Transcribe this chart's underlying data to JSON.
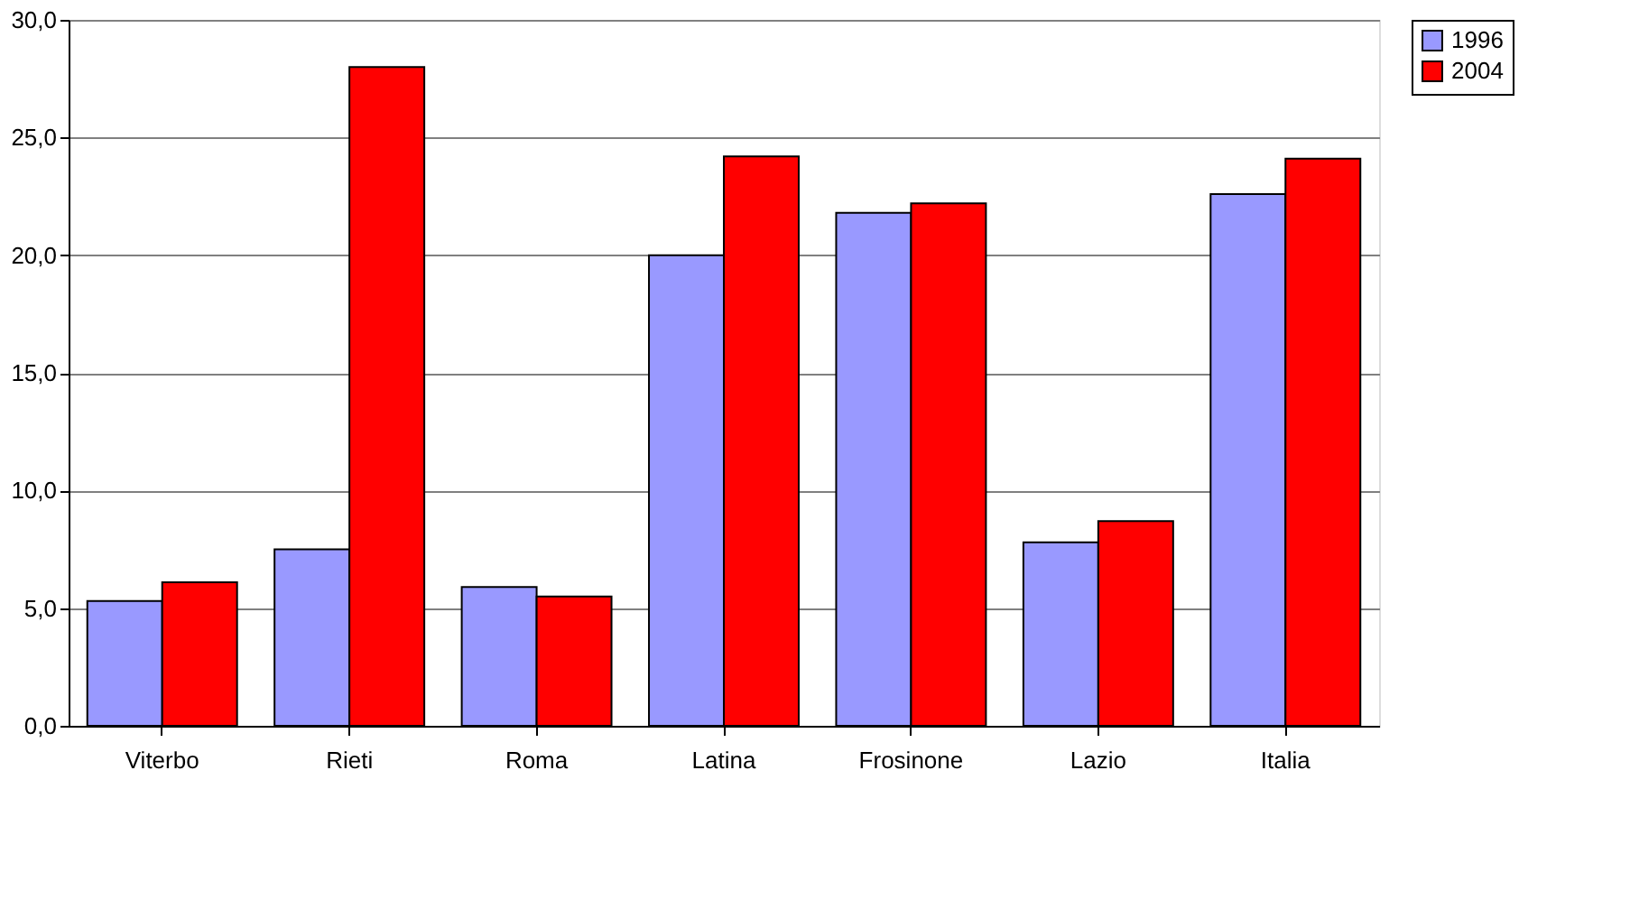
{
  "chart_data": {
    "type": "bar",
    "categories": [
      "Viterbo",
      "Rieti",
      "Roma",
      "Latina",
      "Frosinone",
      "Lazio",
      "Italia"
    ],
    "series": [
      {
        "name": "1996",
        "color": "#9999ff",
        "values": [
          5.3,
          7.5,
          5.9,
          20.0,
          21.8,
          7.8,
          22.6
        ]
      },
      {
        "name": "2004",
        "color": "#ff0000",
        "values": [
          6.1,
          28.0,
          5.5,
          24.2,
          22.2,
          8.7,
          24.1
        ]
      }
    ],
    "ylim": [
      0,
      30
    ],
    "yticks": [
      {
        "value": 0,
        "label": "0,0"
      },
      {
        "value": 5,
        "label": "5,0"
      },
      {
        "value": 10,
        "label": "10,0"
      },
      {
        "value": 15,
        "label": "15,0"
      },
      {
        "value": 20,
        "label": "20,0"
      },
      {
        "value": 25,
        "label": "25,0"
      },
      {
        "value": 30,
        "label": "30,0"
      }
    ],
    "grid": "y",
    "legend": "right"
  }
}
